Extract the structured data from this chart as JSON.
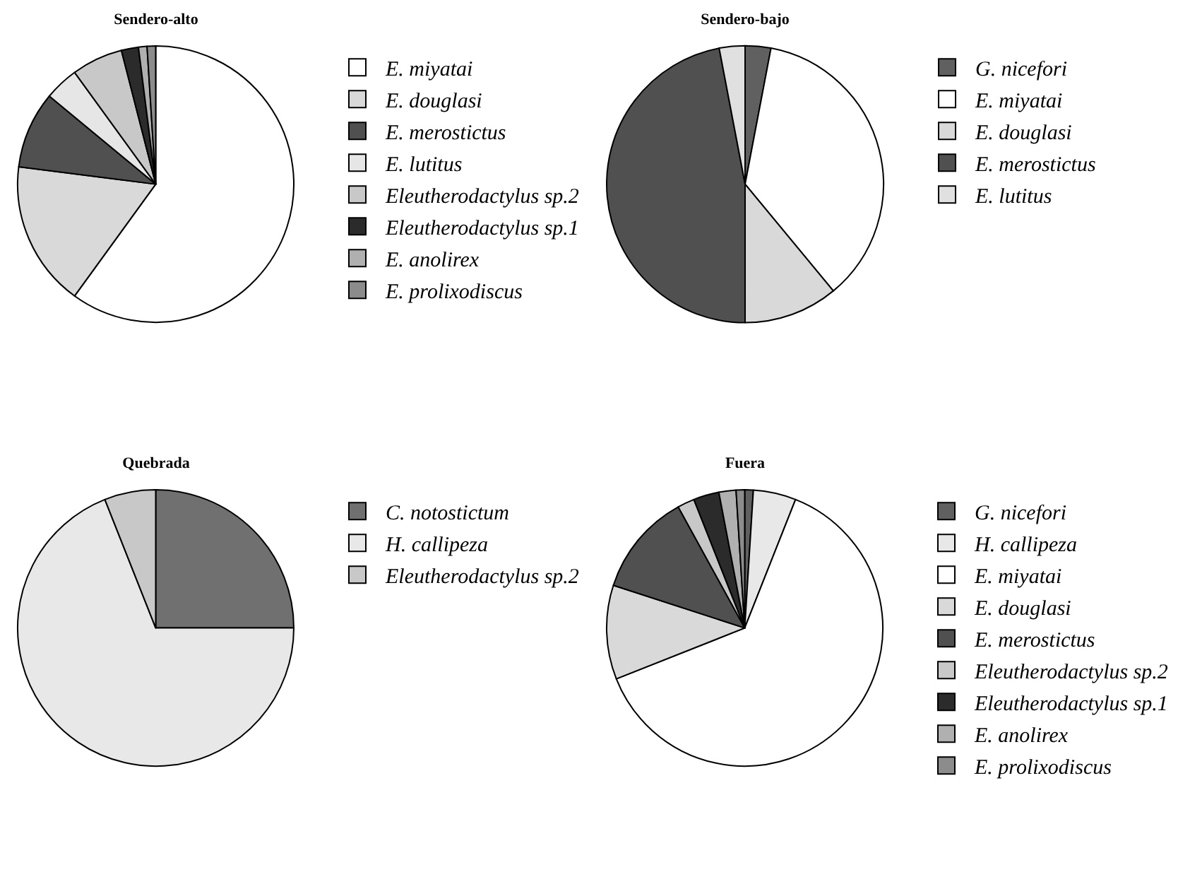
{
  "chart_data": [
    {
      "type": "pie",
      "title": "Sendero-alto",
      "legend": "right",
      "categories": [
        "E. miyatai",
        "E. douglasi",
        "E. merostictus",
        "E. lutitus",
        "Eleutherodactylus sp.2",
        "Eleutherodactylus sp.1",
        "E. anolirex",
        "E. prolixodiscus"
      ],
      "values": [
        60,
        17,
        9,
        4,
        6,
        2,
        1,
        1
      ],
      "colors": [
        "#ffffff",
        "#d9d9d9",
        "#505050",
        "#e6e6e6",
        "#c8c8c8",
        "#2b2b2b",
        "#b0b0b0",
        "#8c8c8c"
      ]
    },
    {
      "type": "pie",
      "title": "Sendero-bajo",
      "legend": "right",
      "categories": [
        "G. nicefori",
        "E. miyatai",
        "E. douglasi",
        "E. merostictus",
        "E. lutitus"
      ],
      "values": [
        3,
        36,
        11,
        47,
        3
      ],
      "colors": [
        "#606060",
        "#ffffff",
        "#d9d9d9",
        "#505050",
        "#e0e0e0"
      ]
    },
    {
      "type": "pie",
      "title": "Quebrada",
      "legend": "right",
      "categories": [
        "C. notostictum",
        "H. callipeza",
        "Eleutherodactylus sp.2"
      ],
      "values": [
        25,
        69,
        6
      ],
      "colors": [
        "#707070",
        "#e8e8e8",
        "#c8c8c8"
      ]
    },
    {
      "type": "pie",
      "title": "Fuera",
      "legend": "right",
      "categories": [
        "G. nicefori",
        "H. callipeza",
        "E. miyatai",
        "E. douglasi",
        "E. merostictus",
        "Eleutherodactylus sp.2",
        "Eleutherodactylus sp.1",
        "E. anolirex",
        "E. prolixodiscus"
      ],
      "values": [
        1,
        5,
        63,
        11,
        12,
        2,
        3,
        2,
        1
      ],
      "colors": [
        "#606060",
        "#e8e8e8",
        "#ffffff",
        "#d9d9d9",
        "#505050",
        "#c8c8c8",
        "#2b2b2b",
        "#b0b0b0",
        "#8c8c8c"
      ]
    }
  ]
}
